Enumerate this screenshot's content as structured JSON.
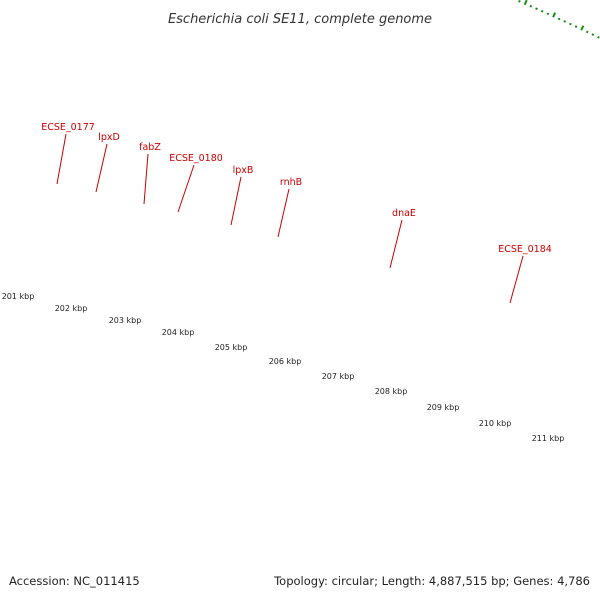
{
  "header": {
    "title": "Escherichia coli SE11, complete genome"
  },
  "footer": {
    "accession": "Accession: NC_011415",
    "summary": "Topology: circular; Length: 4,887,515 bp; Genes: 4,786"
  },
  "colors": {
    "cds_arrow": "#ee0000",
    "backbone": "#888888",
    "ticks": "#1a8a1a",
    "label": "#cc0000",
    "olive": "#6b8e23",
    "violet": "#7b68ee",
    "magenta": "#ee1493",
    "steelblue": "#4682b4"
  },
  "genes": [
    {
      "name": "ECSE_0177"
    },
    {
      "name": "lpxD"
    },
    {
      "name": "fabZ"
    },
    {
      "name": "ECSE_0180"
    },
    {
      "name": "lpxB"
    },
    {
      "name": "rnhB"
    },
    {
      "name": "dnaE"
    },
    {
      "name": "ECSE_0184"
    }
  ],
  "kbp_labels": [
    "201 kbp",
    "202 kbp",
    "203 kbp",
    "204 kbp",
    "205 kbp",
    "206 kbp",
    "207 kbp",
    "208 kbp",
    "209 kbp",
    "210 kbp",
    "211 kbp"
  ]
}
